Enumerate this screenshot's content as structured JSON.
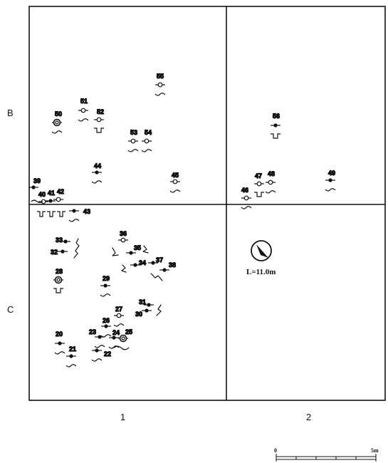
{
  "grid": {
    "rows": [
      "B",
      "C"
    ],
    "columns": [
      "1",
      "2"
    ]
  },
  "north": {
    "icon": "north-arrow-icon",
    "length_label": "L=11.0m"
  },
  "scale": {
    "start": "0",
    "end": "5m"
  },
  "posts": [
    {
      "id": "20",
      "label": "20"
    },
    {
      "id": "21",
      "label": "21"
    },
    {
      "id": "22",
      "label": "22"
    },
    {
      "id": "23",
      "label": "23"
    },
    {
      "id": "24",
      "label": "24"
    },
    {
      "id": "25",
      "label": "25"
    },
    {
      "id": "26",
      "label": "26"
    },
    {
      "id": "27",
      "label": "27"
    },
    {
      "id": "28",
      "label": "28"
    },
    {
      "id": "29",
      "label": "29"
    },
    {
      "id": "30",
      "label": "30"
    },
    {
      "id": "31",
      "label": "31"
    },
    {
      "id": "32",
      "label": "32"
    },
    {
      "id": "33",
      "label": "33"
    },
    {
      "id": "34",
      "label": "34"
    },
    {
      "id": "35",
      "label": "35"
    },
    {
      "id": "36",
      "label": "36"
    },
    {
      "id": "37",
      "label": "37"
    },
    {
      "id": "38",
      "label": "38"
    },
    {
      "id": "39",
      "label": "39"
    },
    {
      "id": "40",
      "label": "40"
    },
    {
      "id": "41",
      "label": "41"
    },
    {
      "id": "42",
      "label": "42"
    },
    {
      "id": "43",
      "label": "43"
    },
    {
      "id": "44",
      "label": "44"
    },
    {
      "id": "45",
      "label": "45"
    },
    {
      "id": "46",
      "label": "46"
    },
    {
      "id": "47",
      "label": "47"
    },
    {
      "id": "48",
      "label": "48"
    },
    {
      "id": "49",
      "label": "49"
    },
    {
      "id": "50",
      "label": "50"
    },
    {
      "id": "51",
      "label": "51"
    },
    {
      "id": "52",
      "label": "52"
    },
    {
      "id": "53",
      "label": "53"
    },
    {
      "id": "54",
      "label": "54"
    },
    {
      "id": "55",
      "label": "55"
    },
    {
      "id": "56",
      "label": "56"
    }
  ]
}
